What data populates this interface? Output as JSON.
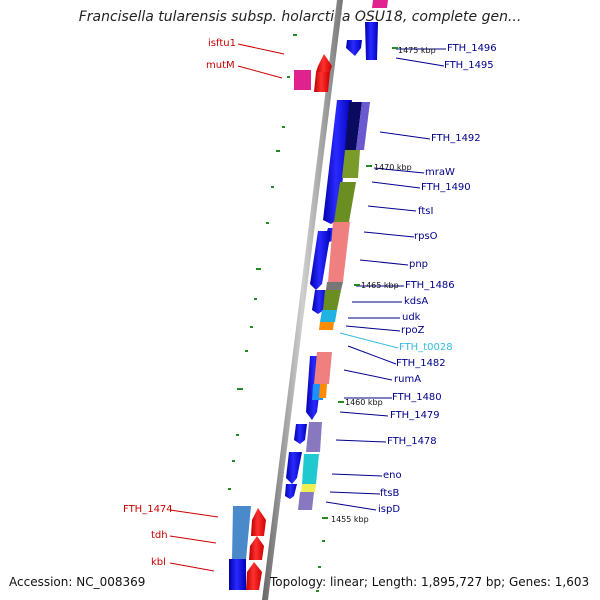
{
  "title": "Francisella tularensis subsp. holarctica OSU18, complete gen...",
  "footer": {
    "accession": "Accession: NC_008369",
    "summary": "Topology: linear; Length: 1,895,727 bp; Genes: 1,603"
  },
  "colors": {
    "gene_blue": "#0000ee",
    "gene_red": "#ee0000",
    "label_blue": "#00008b",
    "label_red": "#cc0000",
    "label_cyan": "#33bbdd",
    "backbone": "#888888",
    "tick_green": "#228b22"
  },
  "scale_ticks": [
    "1475 kbp",
    "1470 kbp",
    "1465 kbp",
    "1460 kbp",
    "1455 kbp"
  ],
  "genes": [
    {
      "name": "FTH_1496",
      "color": "blue"
    },
    {
      "name": "FTH_1495",
      "color": "blue"
    },
    {
      "name": "FTH_1492",
      "color": "blue"
    },
    {
      "name": "mraW",
      "color": "blue"
    },
    {
      "name": "FTH_1490",
      "color": "blue"
    },
    {
      "name": "ftsI",
      "color": "blue"
    },
    {
      "name": "rpsO",
      "color": "blue"
    },
    {
      "name": "pnp",
      "color": "blue"
    },
    {
      "name": "FTH_1486",
      "color": "blue"
    },
    {
      "name": "kdsA",
      "color": "blue"
    },
    {
      "name": "udk",
      "color": "blue"
    },
    {
      "name": "rpoZ",
      "color": "blue"
    },
    {
      "name": "FTH_t0028",
      "color": "cyan"
    },
    {
      "name": "FTH_1482",
      "color": "blue"
    },
    {
      "name": "rumA",
      "color": "blue"
    },
    {
      "name": "FTH_1480",
      "color": "blue"
    },
    {
      "name": "FTH_1479",
      "color": "blue"
    },
    {
      "name": "FTH_1478",
      "color": "blue"
    },
    {
      "name": "eno",
      "color": "blue"
    },
    {
      "name": "ftsB",
      "color": "blue"
    },
    {
      "name": "ispD",
      "color": "blue"
    },
    {
      "name": "isftu1",
      "color": "red"
    },
    {
      "name": "mutM",
      "color": "red"
    },
    {
      "name": "FTH_1474",
      "color": "red"
    },
    {
      "name": "tdh",
      "color": "red"
    },
    {
      "name": "kbl",
      "color": "red"
    }
  ]
}
